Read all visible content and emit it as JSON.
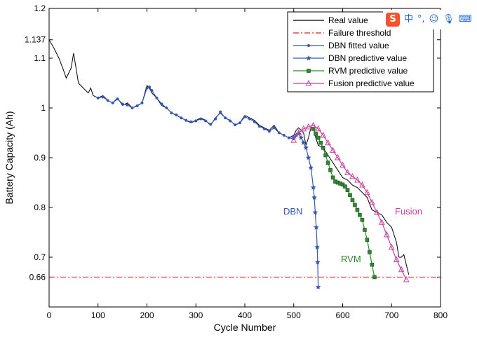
{
  "chart_data": {
    "type": "line",
    "title": "",
    "xlabel": "Cycle Number",
    "ylabel": "Battery Capacity (Ah)",
    "xlim": [
      0,
      800
    ],
    "ylim": [
      0.6,
      1.2
    ],
    "xticks": [
      "0",
      "100",
      "200",
      "300",
      "400",
      "500",
      "600",
      "700",
      "800"
    ],
    "yticks": [
      {
        "value": 0.66,
        "label": "0.66"
      },
      {
        "value": 0.7,
        "label": "0.7"
      },
      {
        "value": 0.8,
        "label": "0.8"
      },
      {
        "value": 0.9,
        "label": "0.9"
      },
      {
        "value": 1.0,
        "label": "1"
      },
      {
        "value": 1.1,
        "label": "1.1"
      },
      {
        "value": 1.137,
        "label": "1.137"
      },
      {
        "value": 1.2,
        "label": "1.2"
      }
    ],
    "grid": false,
    "legend_position": "top-right",
    "series": [
      {
        "name": "Real value",
        "color": "#000000",
        "marker": "none",
        "x": [
          0,
          10,
          20,
          28,
          35,
          45,
          50,
          55,
          60,
          70,
          80,
          85,
          90,
          100,
          110,
          120,
          130,
          140,
          150,
          160,
          170,
          180,
          190,
          200,
          205,
          210,
          220,
          230,
          240,
          250,
          260,
          270,
          280,
          290,
          300,
          310,
          320,
          330,
          340,
          350,
          360,
          370,
          380,
          390,
          400,
          410,
          420,
          430,
          440,
          450,
          460,
          470,
          480,
          490,
          500,
          505,
          510,
          515,
          520,
          525,
          530,
          535,
          540,
          545,
          550,
          560,
          570,
          580,
          590,
          600,
          610,
          620,
          630,
          640,
          650,
          660,
          670,
          680,
          690,
          700,
          710,
          715,
          720,
          725,
          730,
          735
        ],
        "y": [
          1.137,
          1.12,
          1.1,
          1.08,
          1.06,
          1.08,
          1.11,
          1.08,
          1.05,
          1.04,
          1.03,
          1.04,
          1.025,
          1.02,
          1.025,
          1.015,
          1.01,
          1.02,
          1.005,
          1.01,
          1.0,
          1.005,
          1.01,
          1.045,
          1.04,
          1.03,
          1.02,
          1.005,
          1.0,
          0.99,
          0.985,
          0.98,
          0.975,
          0.97,
          0.975,
          0.98,
          0.975,
          0.965,
          0.98,
          0.99,
          0.98,
          0.975,
          0.965,
          0.97,
          0.985,
          0.98,
          0.975,
          0.965,
          0.96,
          0.955,
          0.965,
          0.95,
          0.945,
          0.94,
          0.945,
          0.955,
          0.96,
          0.955,
          0.95,
          0.925,
          0.94,
          0.96,
          0.96,
          0.94,
          0.925,
          0.92,
          0.905,
          0.89,
          0.875,
          0.86,
          0.855,
          0.845,
          0.84,
          0.83,
          0.82,
          0.795,
          0.79,
          0.785,
          0.77,
          0.76,
          0.73,
          0.7,
          0.7,
          0.705,
          0.685,
          0.665
        ]
      },
      {
        "name": "Failure threshold",
        "color": "#e32222",
        "marker": "none",
        "dash": "dashdot",
        "x": [
          0,
          800
        ],
        "y": [
          0.66,
          0.66
        ]
      },
      {
        "name": "DBN fitted value",
        "color": "#3558b2",
        "marker": "dot",
        "x": [
          100,
          110,
          120,
          130,
          140,
          150,
          160,
          170,
          180,
          190,
          200,
          205,
          210,
          220,
          230,
          240,
          250,
          260,
          270,
          280,
          290,
          300,
          310,
          320,
          330,
          340,
          350,
          360,
          370,
          380,
          390,
          400,
          410,
          420,
          430,
          440,
          450,
          460,
          470,
          480,
          490,
          500
        ],
        "y": [
          1.02,
          1.022,
          1.015,
          1.01,
          1.018,
          1.008,
          1.006,
          1.0,
          1.004,
          1.01,
          1.04,
          1.042,
          1.035,
          1.02,
          1.008,
          1.0,
          0.99,
          0.986,
          0.98,
          0.975,
          0.972,
          0.974,
          0.978,
          0.974,
          0.967,
          0.978,
          0.992,
          0.98,
          0.974,
          0.966,
          0.97,
          0.982,
          0.978,
          0.972,
          0.963,
          0.958,
          0.953,
          0.96,
          0.95,
          0.945,
          0.94,
          0.938
        ]
      },
      {
        "name": "DBN predictive value",
        "color": "#3558b2",
        "marker": "star",
        "x": [
          500,
          505,
          510,
          515,
          520,
          525,
          530,
          535,
          540,
          542,
          544,
          546,
          548,
          549,
          550
        ],
        "y": [
          0.94,
          0.945,
          0.948,
          0.94,
          0.93,
          0.92,
          0.9,
          0.88,
          0.84,
          0.82,
          0.79,
          0.76,
          0.72,
          0.69,
          0.64
        ]
      },
      {
        "name": "RVM predictive value",
        "color": "#2d8a2d",
        "marker": "square",
        "x": [
          540,
          545,
          550,
          555,
          560,
          565,
          570,
          575,
          580,
          585,
          590,
          595,
          600,
          605,
          610,
          615,
          620,
          625,
          630,
          635,
          640,
          645,
          650,
          655,
          660,
          665
        ],
        "y": [
          0.958,
          0.948,
          0.94,
          0.93,
          0.92,
          0.905,
          0.89,
          0.875,
          0.86,
          0.852,
          0.85,
          0.848,
          0.846,
          0.842,
          0.835,
          0.825,
          0.815,
          0.805,
          0.795,
          0.785,
          0.775,
          0.755,
          0.735,
          0.71,
          0.685,
          0.66
        ]
      },
      {
        "name": "Fusion predictive value",
        "color": "#c9419d",
        "marker": "triangle",
        "x": [
          500,
          510,
          520,
          530,
          540,
          550,
          560,
          570,
          580,
          590,
          600,
          610,
          620,
          630,
          640,
          650,
          660,
          670,
          680,
          690,
          700,
          710,
          720,
          730
        ],
        "y": [
          0.935,
          0.95,
          0.958,
          0.962,
          0.965,
          0.958,
          0.945,
          0.93,
          0.915,
          0.9,
          0.885,
          0.87,
          0.862,
          0.855,
          0.845,
          0.83,
          0.81,
          0.79,
          0.77,
          0.745,
          0.72,
          0.695,
          0.675,
          0.655
        ]
      }
    ],
    "annotations": [
      {
        "text": "DBN",
        "color": "#3558b2"
      },
      {
        "text": "RVM",
        "color": "#2d8a2d"
      },
      {
        "text": "Fusion",
        "color": "#c9419d"
      }
    ]
  },
  "ime_toolbar": {
    "logo": "S",
    "lang": "中",
    "punct": "°,",
    "icons": [
      "emoji-icon",
      "microphone-icon",
      "keyboard-icon"
    ],
    "emoji_glyph": "☺",
    "mic_glyph": "🎙",
    "kbd_glyph": "⌨"
  }
}
